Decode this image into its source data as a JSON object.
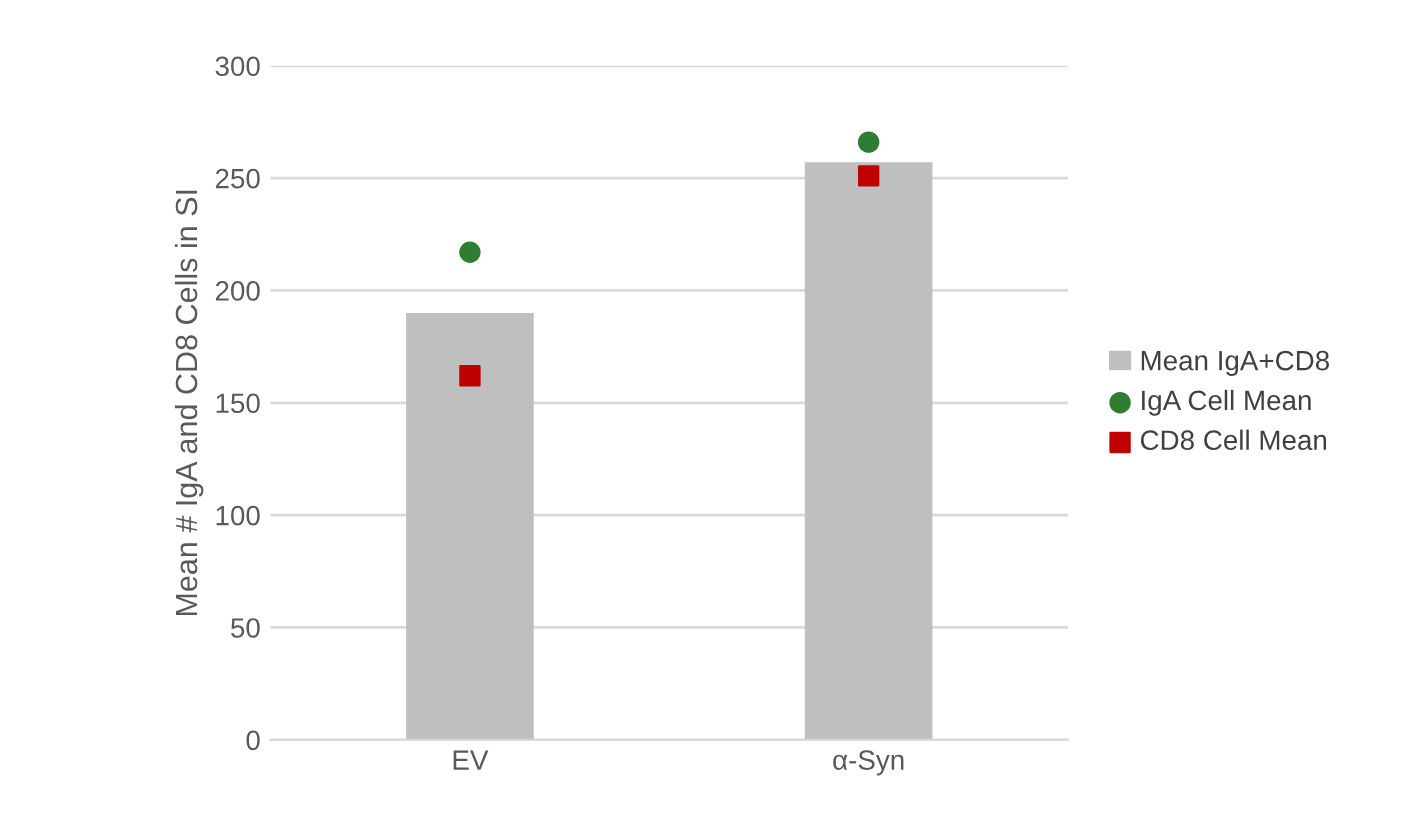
{
  "chart_data": {
    "type": "bar",
    "ylabel": "Mean # IgA and CD8 Cells in SI",
    "categories": [
      "EV",
      "α-Syn"
    ],
    "series": [
      {
        "name": "Mean IgA+CD8",
        "color": "#bfbfbf",
        "values": [
          190,
          257
        ]
      },
      {
        "name": "IgA Cell Mean",
        "type": "scatter",
        "marker": "circle",
        "color": "#2e7d32",
        "x": [
          "EV",
          "α-Syn"
        ],
        "values": [
          217,
          266
        ]
      },
      {
        "name": "CD8 Cell Mean",
        "type": "scatter",
        "marker": "square",
        "color": "#c00000",
        "x": [
          "EV",
          "α-Syn"
        ],
        "values": [
          162,
          251
        ]
      }
    ],
    "ylim": [
      0,
      300
    ],
    "yticks": [
      0,
      50,
      100,
      150,
      200,
      250,
      300
    ],
    "grid": "y",
    "legend": "right"
  }
}
